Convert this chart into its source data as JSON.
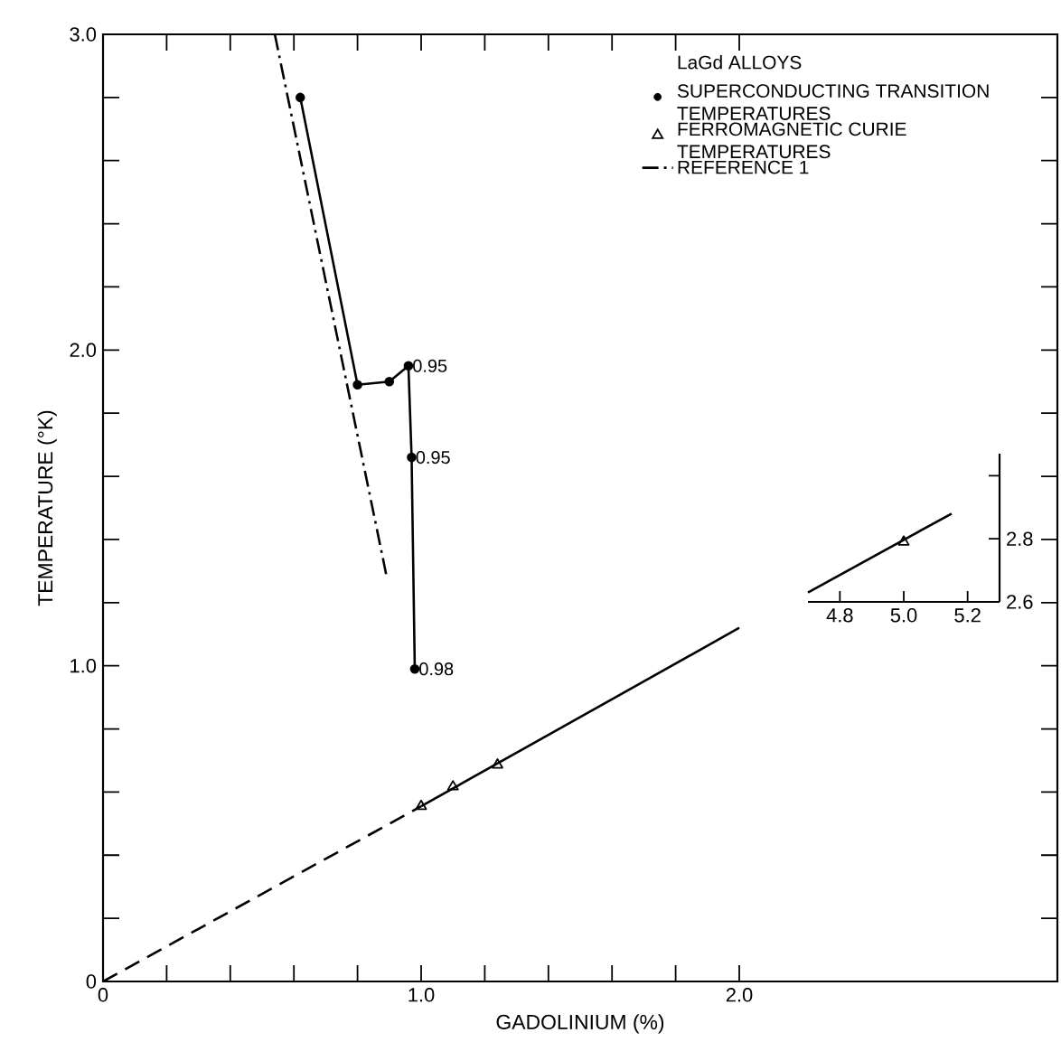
{
  "chart_data": [
    {
      "type": "line",
      "xlabel": "GADOLINIUM (%)",
      "ylabel": "TEMPERATURE (°K)",
      "legend_title": "LaGd ALLOYS",
      "legend": "top right",
      "xlim": [
        0,
        3.0
      ],
      "xticks": [
        {
          "value": 0,
          "label": "0"
        },
        {
          "value": 0.2,
          "label": null
        },
        {
          "value": 0.4,
          "label": null
        },
        {
          "value": 0.6,
          "label": null
        },
        {
          "value": 0.8,
          "label": null
        },
        {
          "value": 1,
          "label": "1.0"
        },
        {
          "value": 1.2,
          "label": null
        },
        {
          "value": 1.4,
          "label": null
        },
        {
          "value": 1.6,
          "label": null
        },
        {
          "value": 1.8,
          "label": null
        },
        {
          "value": 2,
          "label": "2.0"
        }
      ],
      "ylim": [
        0,
        3.0
      ],
      "yticks": [
        {
          "value": 0,
          "label": "0"
        },
        {
          "value": 0.2,
          "label": null
        },
        {
          "value": 0.4,
          "label": null
        },
        {
          "value": 0.6,
          "label": null
        },
        {
          "value": 0.8,
          "label": null
        },
        {
          "value": 1,
          "label": "1.0"
        },
        {
          "value": 1.2,
          "label": null
        },
        {
          "value": 1.4,
          "label": null
        },
        {
          "value": 1.6,
          "label": null
        },
        {
          "value": 1.8,
          "label": null
        },
        {
          "value": 2,
          "label": "2.0"
        },
        {
          "value": 2.2,
          "label": null
        },
        {
          "value": 2.4,
          "label": null
        },
        {
          "value": 2.6,
          "label": null
        },
        {
          "value": 2.8,
          "label": null
        },
        {
          "value": 3,
          "label": "3.0"
        }
      ],
      "series": [
        {
          "name": "SUPERCONDUCTING TRANSITION TEMPERATURES",
          "color": "#000000",
          "marker": "circle",
          "line_style": "solid",
          "x": [
            0.62,
            0.8,
            0.9,
            0.96,
            0.97,
            0.98
          ],
          "values": [
            2.8,
            1.89,
            1.9,
            1.95,
            1.66,
            0.99
          ]
        },
        {
          "name": "FERROMAGNETIC CURIE TEMPERATURES",
          "type": "scatter",
          "color": "#000000",
          "marker": "triangle",
          "x": [
            1.0,
            1.1,
            1.24
          ],
          "values": [
            0.555,
            0.617,
            0.686
          ]
        },
        {
          "name": "REFERENCE 1",
          "color": "#000000",
          "marker": "none",
          "line_style": "dashdot",
          "x": [
            0.54,
            0.89
          ],
          "values": [
            3.0,
            1.29
          ]
        },
        {
          "color": "#000000",
          "marker": "none",
          "line_style": "dashed",
          "x": [
            0,
            1.0
          ],
          "values": [
            0,
            0.555
          ]
        },
        {
          "color": "#000000",
          "marker": "none",
          "line_style": "solid",
          "x": [
            1.0,
            2.0
          ],
          "values": [
            0.555,
            1.12
          ]
        }
      ],
      "annotations": [
        {
          "text": "0.95",
          "x": 0.96,
          "y": 1.95
        },
        {
          "text": "0.95",
          "x": 0.97,
          "y": 1.66
        },
        {
          "text": "0.98",
          "x": 0.98,
          "y": 0.99
        }
      ]
    },
    {
      "type": "line",
      "xlim": [
        4.7,
        5.3
      ],
      "ylim": [
        2.6,
        3.07
      ],
      "xticks": [
        {
          "value": 4.8,
          "label": "4.8"
        },
        {
          "value": 5.0,
          "label": "5.0"
        },
        {
          "value": 5.2,
          "label": "5.2"
        }
      ],
      "yticks": [
        {
          "value": 2.6,
          "label": "2.6"
        },
        {
          "value": 2.8,
          "label": "2.8"
        },
        {
          "value": 3.0,
          "label": null
        }
      ],
      "series": [
        {
          "color": "#000000",
          "marker": "none",
          "line_style": "solid",
          "x": [
            4.7,
            5.15
          ],
          "values": [
            2.63,
            2.88
          ]
        },
        {
          "type": "scatter",
          "color": "#000000",
          "marker": "triangle",
          "x": [
            5.0
          ],
          "values": [
            2.79
          ]
        }
      ]
    }
  ]
}
